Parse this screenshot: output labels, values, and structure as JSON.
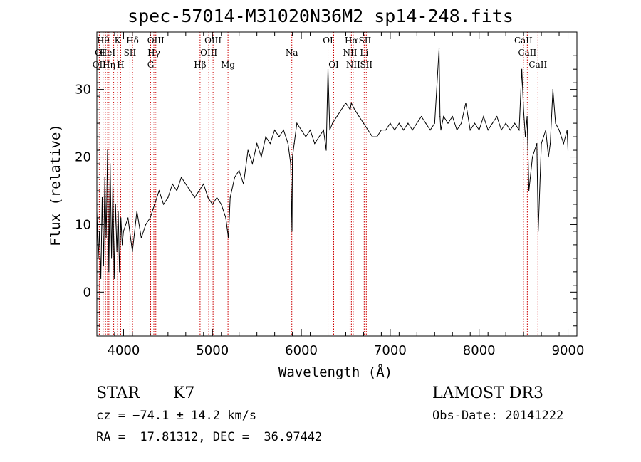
{
  "chart_data": {
    "type": "line",
    "title": "spec-57014-M31020N36M2_sp14-248.fits",
    "xlabel": "Wavelength (Å)",
    "ylabel": "Flux (relative)",
    "xlim": [
      3700,
      9100
    ],
    "ylim": [
      -6.5,
      38.5
    ],
    "xticks": [
      "4000",
      "5000",
      "6000",
      "7000",
      "8000",
      "9000"
    ],
    "yticks": [
      "0",
      "10",
      "20",
      "30"
    ],
    "series": [
      {
        "name": "flux",
        "x": [
          3700,
          3715,
          3730,
          3745,
          3760,
          3775,
          3790,
          3805,
          3820,
          3835,
          3850,
          3865,
          3880,
          3895,
          3910,
          3925,
          3940,
          3955,
          3970,
          3985,
          4000,
          4050,
          4100,
          4150,
          4200,
          4250,
          4300,
          4350,
          4400,
          4450,
          4500,
          4550,
          4600,
          4650,
          4700,
          4750,
          4800,
          4850,
          4900,
          4950,
          5000,
          5050,
          5100,
          5150,
          5180,
          5200,
          5250,
          5300,
          5350,
          5400,
          5450,
          5500,
          5550,
          5600,
          5650,
          5700,
          5750,
          5800,
          5850,
          5880,
          5895,
          5900,
          5920,
          5950,
          6000,
          6050,
          6100,
          6150,
          6200,
          6250,
          6280,
          6300,
          6320,
          6350,
          6400,
          6450,
          6500,
          6550,
          6562,
          6600,
          6650,
          6700,
          6750,
          6800,
          6850,
          6900,
          6950,
          7000,
          7050,
          7100,
          7150,
          7200,
          7250,
          7300,
          7350,
          7400,
          7450,
          7500,
          7550,
          7560,
          7570,
          7600,
          7650,
          7700,
          7750,
          7800,
          7850,
          7900,
          7950,
          8000,
          8050,
          8100,
          8150,
          8200,
          8250,
          8300,
          8350,
          8400,
          8450,
          8480,
          8500,
          8520,
          8540,
          8560,
          8600,
          8650,
          8665,
          8700,
          8750,
          8780,
          8800,
          8830,
          8860,
          8900,
          8950,
          8990,
          9000
        ],
        "values": [
          12,
          5,
          9,
          2,
          14,
          4,
          17,
          8,
          21,
          3,
          19,
          5,
          16,
          2,
          13,
          6,
          12,
          3,
          11,
          7,
          9,
          11,
          6,
          12,
          8,
          10,
          11,
          13,
          15,
          13,
          14,
          16,
          15,
          17,
          16,
          15,
          14,
          15,
          16,
          14,
          13,
          14,
          13,
          11,
          8,
          14,
          17,
          18,
          16,
          21,
          19,
          22,
          20,
          23,
          22,
          24,
          23,
          24,
          22,
          19,
          9,
          20,
          22,
          25,
          24,
          23,
          24,
          22,
          23,
          24,
          21,
          33,
          24,
          25,
          26,
          27,
          28,
          27,
          28,
          27,
          26,
          25,
          24,
          23,
          23,
          24,
          24,
          25,
          24,
          25,
          24,
          25,
          24,
          25,
          26,
          25,
          24,
          25,
          36,
          26,
          24,
          26,
          25,
          26,
          24,
          25,
          28,
          24,
          25,
          24,
          26,
          24,
          25,
          26,
          24,
          25,
          24,
          25,
          24,
          33,
          27,
          23,
          26,
          15,
          20,
          22,
          9,
          22,
          24,
          20,
          22,
          30,
          25,
          24,
          22,
          24,
          21
        ]
      }
    ],
    "lines": [
      {
        "x": 3727,
        "row": 2,
        "label": "OII"
      },
      {
        "x": 3734,
        "row": 1,
        "label": "OI"
      },
      {
        "x": 3770,
        "row": 0,
        "label": "Hθ"
      },
      {
        "x": 3797,
        "row": 0,
        "label": ""
      },
      {
        "x": 3820,
        "row": 1,
        "label": "HeI"
      },
      {
        "x": 3835,
        "row": 2,
        "label": "Hη"
      },
      {
        "x": 3889,
        "row": 2,
        "label": ""
      },
      {
        "x": 3933,
        "row": 0,
        "label": "K"
      },
      {
        "x": 3968,
        "row": 2,
        "label": "H"
      },
      {
        "x": 4072,
        "row": 1,
        "label": "SII"
      },
      {
        "x": 4101,
        "row": 0,
        "label": "Hδ"
      },
      {
        "x": 4305,
        "row": 2,
        "label": "G"
      },
      {
        "x": 4341,
        "row": 1,
        "label": "Hγ"
      },
      {
        "x": 4363,
        "row": 0,
        "label": "OIII"
      },
      {
        "x": 4861,
        "row": 2,
        "label": "Hβ"
      },
      {
        "x": 4959,
        "row": 1,
        "label": "OIII"
      },
      {
        "x": 5007,
        "row": 0,
        "label": "OIII"
      },
      {
        "x": 5175,
        "row": 2,
        "label": "Mg"
      },
      {
        "x": 5893,
        "row": 1,
        "label": "Na"
      },
      {
        "x": 6300,
        "row": 0,
        "label": "OI"
      },
      {
        "x": 6364,
        "row": 2,
        "label": "OI"
      },
      {
        "x": 6548,
        "row": 1,
        "label": "NII"
      },
      {
        "x": 6563,
        "row": 0,
        "label": "Hα"
      },
      {
        "x": 6583,
        "row": 2,
        "label": "NII"
      },
      {
        "x": 6707,
        "row": 1,
        "label": "Li"
      },
      {
        "x": 6716,
        "row": 0,
        "label": "SII"
      },
      {
        "x": 6731,
        "row": 2,
        "label": "SII"
      },
      {
        "x": 8498,
        "row": 0,
        "label": "CaII"
      },
      {
        "x": 8542,
        "row": 1,
        "label": "CaII"
      },
      {
        "x": 8662,
        "row": 2,
        "label": "CaII"
      }
    ]
  },
  "info": {
    "class_label": "STAR",
    "subclass": "K7",
    "survey": "LAMOST DR3",
    "cz": "cz = −74.1 ± 14.2 km/s",
    "obs_date": "Obs-Date: 20141222",
    "coords": "RA =  17.81312, DEC =  36.97442"
  },
  "colors": {
    "line_marker": "#cc0000",
    "spectrum": "#000000"
  }
}
